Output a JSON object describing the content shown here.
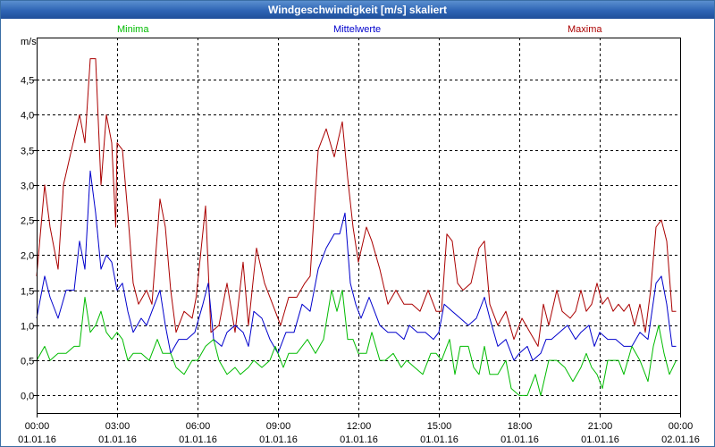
{
  "window": {
    "title": "Windgeschwindigkeit [m/s] skaliert"
  },
  "colors": {
    "min": "#00bb00",
    "mean": "#0000cc",
    "max": "#aa0000",
    "grid": "#000000",
    "axis": "#000000"
  },
  "chart_data": {
    "type": "line",
    "title": "Windgeschwindigkeit [m/s] skaliert",
    "ylabel": "m/s",
    "xlabel": "",
    "ylim": [
      -0.25,
      5.1
    ],
    "xlim_hours": [
      0,
      24
    ],
    "y_ticks": [
      "0,0",
      "0,5",
      "1,0",
      "1,5",
      "2,0",
      "2,5",
      "3,0",
      "3,5",
      "4,0",
      "4,5"
    ],
    "y_tick_values": [
      0,
      0.5,
      1.0,
      1.5,
      2.0,
      2.5,
      3.0,
      3.5,
      4.0,
      4.5
    ],
    "x_ticks": [
      {
        "time": "00:00",
        "date": "01.01.16",
        "hour": 0
      },
      {
        "time": "03:00",
        "date": "01.01.16",
        "hour": 3
      },
      {
        "time": "06:00",
        "date": "01.01.16",
        "hour": 6
      },
      {
        "time": "09:00",
        "date": "01.01.16",
        "hour": 9
      },
      {
        "time": "12:00",
        "date": "01.01.16",
        "hour": 12
      },
      {
        "time": "15:00",
        "date": "01.01.16",
        "hour": 15
      },
      {
        "time": "18:00",
        "date": "01.01.16",
        "hour": 18
      },
      {
        "time": "21:00",
        "date": "01.01.16",
        "hour": 21
      },
      {
        "time": "00:00",
        "date": "02.01.16",
        "hour": 24
      }
    ],
    "grid": true,
    "legend": [
      "Minima",
      "Mittelwerte",
      "Maxima"
    ],
    "series": [
      {
        "name": "Maxima",
        "color": "#aa0000",
        "points": [
          [
            0,
            1.7
          ],
          [
            0.3,
            3.0
          ],
          [
            0.5,
            2.4
          ],
          [
            0.8,
            1.8
          ],
          [
            1.0,
            3.0
          ],
          [
            1.3,
            3.5
          ],
          [
            1.6,
            4.0
          ],
          [
            1.8,
            3.6
          ],
          [
            2.0,
            4.8
          ],
          [
            2.2,
            4.8
          ],
          [
            2.4,
            3.0
          ],
          [
            2.6,
            4.0
          ],
          [
            2.8,
            3.6
          ],
          [
            2.95,
            2.4
          ],
          [
            3.0,
            3.6
          ],
          [
            3.2,
            3.5
          ],
          [
            3.4,
            2.6
          ],
          [
            3.6,
            1.6
          ],
          [
            3.8,
            1.3
          ],
          [
            4.1,
            1.5
          ],
          [
            4.3,
            1.3
          ],
          [
            4.6,
            2.8
          ],
          [
            4.8,
            2.4
          ],
          [
            5.0,
            1.5
          ],
          [
            5.2,
            0.9
          ],
          [
            5.5,
            1.2
          ],
          [
            5.8,
            1.1
          ],
          [
            5.95,
            1.4
          ],
          [
            6.3,
            2.7
          ],
          [
            6.5,
            0.9
          ],
          [
            6.8,
            1.0
          ],
          [
            7.1,
            1.6
          ],
          [
            7.4,
            0.9
          ],
          [
            7.7,
            1.9
          ],
          [
            7.9,
            1.0
          ],
          [
            8.2,
            2.1
          ],
          [
            8.5,
            1.6
          ],
          [
            8.8,
            1.3
          ],
          [
            9.1,
            1.0
          ],
          [
            9.4,
            1.4
          ],
          [
            9.7,
            1.4
          ],
          [
            10.0,
            1.6
          ],
          [
            10.2,
            1.7
          ],
          [
            10.5,
            3.5
          ],
          [
            10.8,
            3.8
          ],
          [
            11.1,
            3.4
          ],
          [
            11.4,
            3.9
          ],
          [
            11.6,
            3.1
          ],
          [
            11.8,
            2.4
          ],
          [
            12.0,
            1.9
          ],
          [
            12.3,
            2.4
          ],
          [
            12.5,
            2.2
          ],
          [
            12.8,
            1.8
          ],
          [
            13.1,
            1.3
          ],
          [
            13.4,
            1.5
          ],
          [
            13.7,
            1.3
          ],
          [
            14.0,
            1.3
          ],
          [
            14.3,
            1.2
          ],
          [
            14.6,
            1.5
          ],
          [
            14.9,
            1.2
          ],
          [
            15.1,
            1.2
          ],
          [
            15.3,
            2.3
          ],
          [
            15.5,
            2.2
          ],
          [
            15.7,
            1.6
          ],
          [
            15.9,
            1.5
          ],
          [
            16.2,
            1.6
          ],
          [
            16.5,
            2.1
          ],
          [
            16.7,
            2.2
          ],
          [
            16.9,
            1.3
          ],
          [
            17.2,
            1.0
          ],
          [
            17.5,
            1.2
          ],
          [
            17.8,
            0.8
          ],
          [
            18.1,
            1.1
          ],
          [
            18.4,
            0.9
          ],
          [
            18.7,
            0.7
          ],
          [
            18.9,
            1.3
          ],
          [
            19.1,
            1.0
          ],
          [
            19.4,
            1.5
          ],
          [
            19.6,
            1.2
          ],
          [
            19.9,
            1.1
          ],
          [
            20.1,
            1.2
          ],
          [
            20.3,
            1.5
          ],
          [
            20.5,
            1.2
          ],
          [
            20.7,
            1.3
          ],
          [
            20.9,
            1.6
          ],
          [
            21.1,
            1.3
          ],
          [
            21.3,
            1.4
          ],
          [
            21.5,
            1.2
          ],
          [
            21.7,
            1.3
          ],
          [
            21.9,
            1.2
          ],
          [
            22.1,
            1.3
          ],
          [
            22.3,
            1.0
          ],
          [
            22.5,
            1.3
          ],
          [
            22.7,
            0.9
          ],
          [
            22.9,
            1.5
          ],
          [
            23.1,
            2.4
          ],
          [
            23.3,
            2.5
          ],
          [
            23.5,
            2.2
          ],
          [
            23.7,
            1.2
          ],
          [
            23.85,
            1.2
          ]
        ]
      },
      {
        "name": "Mittelwerte",
        "color": "#0000cc",
        "points": [
          [
            0,
            1.1
          ],
          [
            0.3,
            1.7
          ],
          [
            0.5,
            1.4
          ],
          [
            0.8,
            1.1
          ],
          [
            1.1,
            1.5
          ],
          [
            1.4,
            1.5
          ],
          [
            1.6,
            2.2
          ],
          [
            1.8,
            1.8
          ],
          [
            2.0,
            3.2
          ],
          [
            2.2,
            2.6
          ],
          [
            2.4,
            1.8
          ],
          [
            2.6,
            2.0
          ],
          [
            2.8,
            1.9
          ],
          [
            3.0,
            1.5
          ],
          [
            3.2,
            1.6
          ],
          [
            3.4,
            1.2
          ],
          [
            3.6,
            0.9
          ],
          [
            3.9,
            1.1
          ],
          [
            4.1,
            1.0
          ],
          [
            4.4,
            1.3
          ],
          [
            4.6,
            1.5
          ],
          [
            4.8,
            1.0
          ],
          [
            5.0,
            0.6
          ],
          [
            5.3,
            0.8
          ],
          [
            5.6,
            0.8
          ],
          [
            5.9,
            0.9
          ],
          [
            6.2,
            1.3
          ],
          [
            6.4,
            1.6
          ],
          [
            6.6,
            0.8
          ],
          [
            6.9,
            0.7
          ],
          [
            7.1,
            0.9
          ],
          [
            7.4,
            1.0
          ],
          [
            7.7,
            0.9
          ],
          [
            7.9,
            0.7
          ],
          [
            8.1,
            1.2
          ],
          [
            8.4,
            1.1
          ],
          [
            8.7,
            0.8
          ],
          [
            9.0,
            0.6
          ],
          [
            9.3,
            0.9
          ],
          [
            9.6,
            0.9
          ],
          [
            9.9,
            1.3
          ],
          [
            10.2,
            1.2
          ],
          [
            10.5,
            1.8
          ],
          [
            10.8,
            2.1
          ],
          [
            11.1,
            2.3
          ],
          [
            11.3,
            2.3
          ],
          [
            11.5,
            2.6
          ],
          [
            11.7,
            1.6
          ],
          [
            11.9,
            1.3
          ],
          [
            12.1,
            1.1
          ],
          [
            12.4,
            1.4
          ],
          [
            12.6,
            1.2
          ],
          [
            12.8,
            1.0
          ],
          [
            13.1,
            0.9
          ],
          [
            13.4,
            0.9
          ],
          [
            13.7,
            0.8
          ],
          [
            13.9,
            1.0
          ],
          [
            14.2,
            0.9
          ],
          [
            14.5,
            0.9
          ],
          [
            14.8,
            0.8
          ],
          [
            15.0,
            0.9
          ],
          [
            15.2,
            1.3
          ],
          [
            15.5,
            1.2
          ],
          [
            15.8,
            1.1
          ],
          [
            16.1,
            1.0
          ],
          [
            16.4,
            1.1
          ],
          [
            16.7,
            1.4
          ],
          [
            16.9,
            1.1
          ],
          [
            17.2,
            0.7
          ],
          [
            17.5,
            0.8
          ],
          [
            17.8,
            0.5
          ],
          [
            18.0,
            0.6
          ],
          [
            18.3,
            0.7
          ],
          [
            18.5,
            0.5
          ],
          [
            18.8,
            0.6
          ],
          [
            19.0,
            0.8
          ],
          [
            19.2,
            0.8
          ],
          [
            19.5,
            0.9
          ],
          [
            19.8,
            1.0
          ],
          [
            20.1,
            0.8
          ],
          [
            20.3,
            0.9
          ],
          [
            20.6,
            1.0
          ],
          [
            20.8,
            0.7
          ],
          [
            21.0,
            0.9
          ],
          [
            21.3,
            0.8
          ],
          [
            21.6,
            0.8
          ],
          [
            21.9,
            0.7
          ],
          [
            22.2,
            0.7
          ],
          [
            22.5,
            0.9
          ],
          [
            22.8,
            0.8
          ],
          [
            23.1,
            1.6
          ],
          [
            23.3,
            1.7
          ],
          [
            23.5,
            1.3
          ],
          [
            23.7,
            0.7
          ],
          [
            23.85,
            0.7
          ]
        ]
      },
      {
        "name": "Minima",
        "color": "#00bb00",
        "points": [
          [
            0,
            0.5
          ],
          [
            0.3,
            0.7
          ],
          [
            0.5,
            0.5
          ],
          [
            0.8,
            0.6
          ],
          [
            1.1,
            0.6
          ],
          [
            1.4,
            0.7
          ],
          [
            1.6,
            0.7
          ],
          [
            1.8,
            1.4
          ],
          [
            2.0,
            0.9
          ],
          [
            2.2,
            1.0
          ],
          [
            2.4,
            1.2
          ],
          [
            2.6,
            0.9
          ],
          [
            2.8,
            0.8
          ],
          [
            3.0,
            0.9
          ],
          [
            3.2,
            0.8
          ],
          [
            3.4,
            0.5
          ],
          [
            3.6,
            0.6
          ],
          [
            3.9,
            0.6
          ],
          [
            4.2,
            0.5
          ],
          [
            4.5,
            0.8
          ],
          [
            4.7,
            0.6
          ],
          [
            5.0,
            0.6
          ],
          [
            5.2,
            0.4
          ],
          [
            5.5,
            0.3
          ],
          [
            5.8,
            0.5
          ],
          [
            6.0,
            0.5
          ],
          [
            6.3,
            0.7
          ],
          [
            6.6,
            0.8
          ],
          [
            6.8,
            0.5
          ],
          [
            7.1,
            0.3
          ],
          [
            7.4,
            0.4
          ],
          [
            7.6,
            0.3
          ],
          [
            7.9,
            0.4
          ],
          [
            8.1,
            0.5
          ],
          [
            8.4,
            0.4
          ],
          [
            8.7,
            0.5
          ],
          [
            8.9,
            0.7
          ],
          [
            9.0,
            0.6
          ],
          [
            9.2,
            0.4
          ],
          [
            9.4,
            0.6
          ],
          [
            9.7,
            0.6
          ],
          [
            9.9,
            0.7
          ],
          [
            10.1,
            0.8
          ],
          [
            10.4,
            0.6
          ],
          [
            10.7,
            0.8
          ],
          [
            11.0,
            1.5
          ],
          [
            11.2,
            1.2
          ],
          [
            11.4,
            1.5
          ],
          [
            11.6,
            0.8
          ],
          [
            11.8,
            0.8
          ],
          [
            12.0,
            0.6
          ],
          [
            12.3,
            0.6
          ],
          [
            12.5,
            0.9
          ],
          [
            12.8,
            0.5
          ],
          [
            13.0,
            0.5
          ],
          [
            13.3,
            0.6
          ],
          [
            13.6,
            0.4
          ],
          [
            13.8,
            0.5
          ],
          [
            14.1,
            0.4
          ],
          [
            14.4,
            0.3
          ],
          [
            14.7,
            0.6
          ],
          [
            14.9,
            0.6
          ],
          [
            15.1,
            0.5
          ],
          [
            15.4,
            0.8
          ],
          [
            15.6,
            0.3
          ],
          [
            15.8,
            0.7
          ],
          [
            16.1,
            0.7
          ],
          [
            16.3,
            0.4
          ],
          [
            16.5,
            0.3
          ],
          [
            16.7,
            0.7
          ],
          [
            16.9,
            0.3
          ],
          [
            17.2,
            0.3
          ],
          [
            17.5,
            0.5
          ],
          [
            17.7,
            0.1
          ],
          [
            18.0,
            0.0
          ],
          [
            18.3,
            0.0
          ],
          [
            18.6,
            0.3
          ],
          [
            18.8,
            0.0
          ],
          [
            19.1,
            0.5
          ],
          [
            19.4,
            0.5
          ],
          [
            19.7,
            0.4
          ],
          [
            20.0,
            0.2
          ],
          [
            20.3,
            0.4
          ],
          [
            20.5,
            0.6
          ],
          [
            20.7,
            0.4
          ],
          [
            20.9,
            0.3
          ],
          [
            21.1,
            0.1
          ],
          [
            21.3,
            0.5
          ],
          [
            21.5,
            0.5
          ],
          [
            21.7,
            0.5
          ],
          [
            21.9,
            0.3
          ],
          [
            22.2,
            0.7
          ],
          [
            22.5,
            0.5
          ],
          [
            22.8,
            0.2
          ],
          [
            23.0,
            0.7
          ],
          [
            23.2,
            1.0
          ],
          [
            23.4,
            0.6
          ],
          [
            23.6,
            0.3
          ],
          [
            23.85,
            0.5
          ]
        ]
      }
    ]
  }
}
